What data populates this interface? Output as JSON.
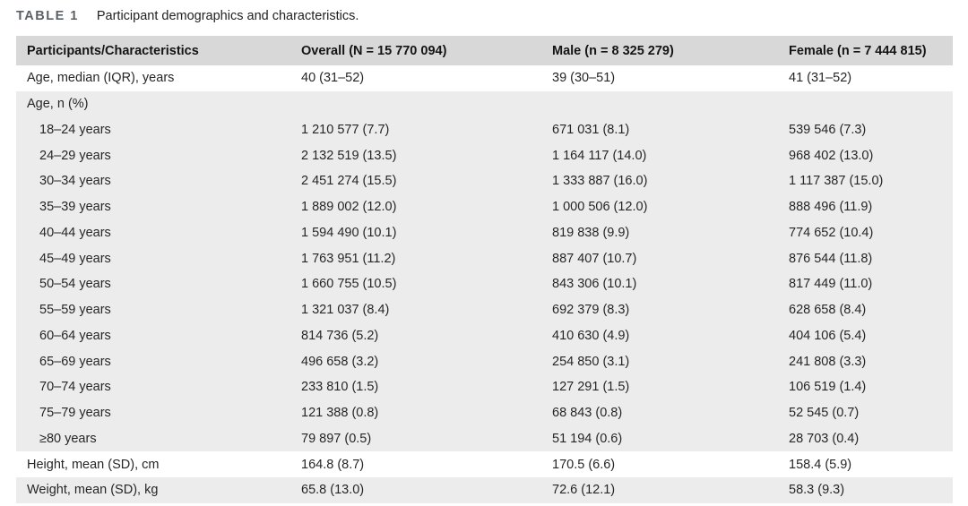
{
  "colors": {
    "header_bg": "#d8d8d8",
    "band_bg": "#ececec",
    "row_bg": "#ffffff",
    "label_color": "#5b6067",
    "text_color": "#262626"
  },
  "table": {
    "label": "TABLE 1",
    "caption": "Participant demographics and characteristics.",
    "columns": [
      "Participants/Characteristics",
      "Overall (N = 15 770 094)",
      "Male (n = 8 325 279)",
      "Female (n = 7 444 815)"
    ],
    "rows": [
      {
        "label": "Age, median (IQR), years",
        "indent": 0,
        "bg": "white",
        "values": [
          "40 (31–52)",
          "39 (30–51)",
          "41 (31–52)"
        ]
      },
      {
        "label": "Age, n (%)",
        "indent": 0,
        "bg": "band",
        "values": [
          "",
          "",
          ""
        ]
      },
      {
        "label": "18–24 years",
        "indent": 1,
        "bg": "band",
        "values": [
          "1 210 577 (7.7)",
          "671 031 (8.1)",
          "539 546 (7.3)"
        ]
      },
      {
        "label": "24–29 years",
        "indent": 1,
        "bg": "band",
        "values": [
          "2 132 519 (13.5)",
          "1 164 117 (14.0)",
          "968 402 (13.0)"
        ]
      },
      {
        "label": "30–34 years",
        "indent": 1,
        "bg": "band",
        "values": [
          "2 451 274 (15.5)",
          "1 333 887 (16.0)",
          "1 117 387 (15.0)"
        ]
      },
      {
        "label": "35–39 years",
        "indent": 1,
        "bg": "band",
        "values": [
          "1 889 002 (12.0)",
          "1 000 506 (12.0)",
          "888 496 (11.9)"
        ]
      },
      {
        "label": "40–44 years",
        "indent": 1,
        "bg": "band",
        "values": [
          "1 594 490 (10.1)",
          "819 838 (9.9)",
          "774 652 (10.4)"
        ]
      },
      {
        "label": "45–49 years",
        "indent": 1,
        "bg": "band",
        "values": [
          "1 763 951 (11.2)",
          "887 407 (10.7)",
          "876 544 (11.8)"
        ]
      },
      {
        "label": "50–54 years",
        "indent": 1,
        "bg": "band",
        "values": [
          "1 660 755 (10.5)",
          "843 306 (10.1)",
          "817 449 (11.0)"
        ]
      },
      {
        "label": "55–59 years",
        "indent": 1,
        "bg": "band",
        "values": [
          "1 321 037 (8.4)",
          "692 379 (8.3)",
          "628 658 (8.4)"
        ]
      },
      {
        "label": "60–64 years",
        "indent": 1,
        "bg": "band",
        "values": [
          "814 736 (5.2)",
          "410 630 (4.9)",
          "404 106 (5.4)"
        ]
      },
      {
        "label": "65–69 years",
        "indent": 1,
        "bg": "band",
        "values": [
          "496 658 (3.2)",
          "254 850 (3.1)",
          "241 808 (3.3)"
        ]
      },
      {
        "label": "70–74 years",
        "indent": 1,
        "bg": "band",
        "values": [
          "233 810 (1.5)",
          "127 291 (1.5)",
          "106 519 (1.4)"
        ]
      },
      {
        "label": "75–79 years",
        "indent": 1,
        "bg": "band",
        "values": [
          "121 388 (0.8)",
          "68 843 (0.8)",
          "52 545 (0.7)"
        ]
      },
      {
        "label": "≥80 years",
        "indent": 1,
        "bg": "band",
        "values": [
          "79 897 (0.5)",
          "51 194 (0.6)",
          "28 703 (0.4)"
        ]
      },
      {
        "label": "Height, mean (SD), cm",
        "indent": 0,
        "bg": "white",
        "values": [
          "164.8 (8.7)",
          "170.5 (6.6)",
          "158.4 (5.9)"
        ]
      },
      {
        "label": "Weight, mean (SD), kg",
        "indent": 0,
        "bg": "band",
        "values": [
          "65.8 (13.0)",
          "72.6 (12.1)",
          "58.3 (9.3)"
        ]
      }
    ]
  }
}
